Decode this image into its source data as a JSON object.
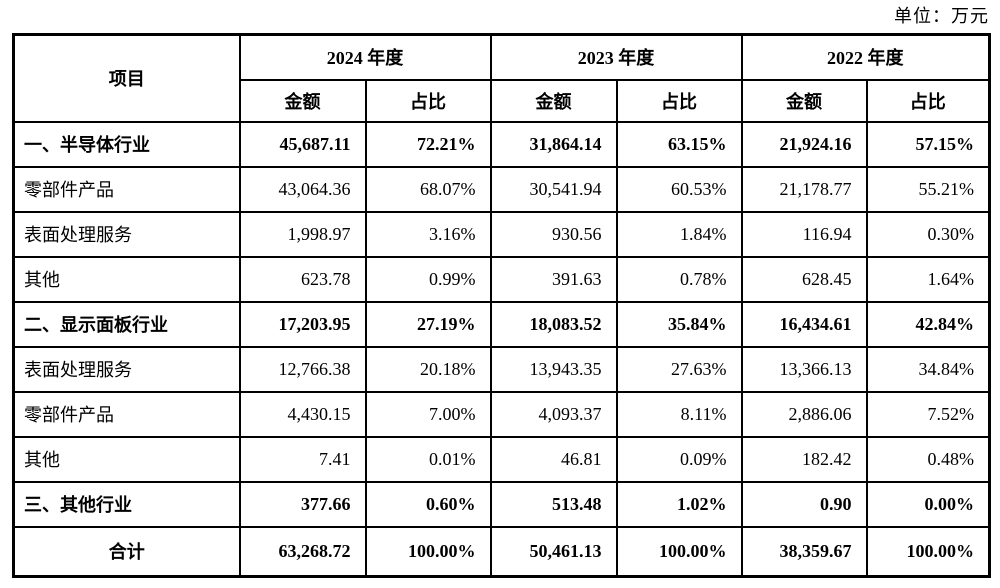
{
  "unit_label": "单位：万元",
  "table": {
    "item_header": "项目",
    "year_groups": [
      {
        "label": "2024 年度"
      },
      {
        "label": "2023 年度"
      },
      {
        "label": "2022 年度"
      }
    ],
    "sub_headers": {
      "amount": "金额",
      "ratio": "占比"
    },
    "rows": [
      {
        "item": "一、半导体行业",
        "bold": true,
        "center": false,
        "values": [
          "45,687.11",
          "72.21%",
          "31,864.14",
          "63.15%",
          "21,924.16",
          "57.15%"
        ]
      },
      {
        "item": "零部件产品",
        "bold": false,
        "center": false,
        "values": [
          "43,064.36",
          "68.07%",
          "30,541.94",
          "60.53%",
          "21,178.77",
          "55.21%"
        ]
      },
      {
        "item": "表面处理服务",
        "bold": false,
        "center": false,
        "values": [
          "1,998.97",
          "3.16%",
          "930.56",
          "1.84%",
          "116.94",
          "0.30%"
        ]
      },
      {
        "item": "其他",
        "bold": false,
        "center": false,
        "values": [
          "623.78",
          "0.99%",
          "391.63",
          "0.78%",
          "628.45",
          "1.64%"
        ]
      },
      {
        "item": "二、显示面板行业",
        "bold": true,
        "center": false,
        "values": [
          "17,203.95",
          "27.19%",
          "18,083.52",
          "35.84%",
          "16,434.61",
          "42.84%"
        ]
      },
      {
        "item": "表面处理服务",
        "bold": false,
        "center": false,
        "values": [
          "12,766.38",
          "20.18%",
          "13,943.35",
          "27.63%",
          "13,366.13",
          "34.84%"
        ]
      },
      {
        "item": "零部件产品",
        "bold": false,
        "center": false,
        "values": [
          "4,430.15",
          "7.00%",
          "4,093.37",
          "8.11%",
          "2,886.06",
          "7.52%"
        ]
      },
      {
        "item": "其他",
        "bold": false,
        "center": false,
        "values": [
          "7.41",
          "0.01%",
          "46.81",
          "0.09%",
          "182.42",
          "0.48%"
        ]
      },
      {
        "item": "三、其他行业",
        "bold": true,
        "center": false,
        "values": [
          "377.66",
          "0.60%",
          "513.48",
          "1.02%",
          "0.90",
          "0.00%"
        ]
      },
      {
        "item": "合计",
        "bold": true,
        "center": true,
        "values": [
          "63,268.72",
          "100.00%",
          "50,461.13",
          "100.00%",
          "38,359.67",
          "100.00%"
        ]
      }
    ]
  }
}
